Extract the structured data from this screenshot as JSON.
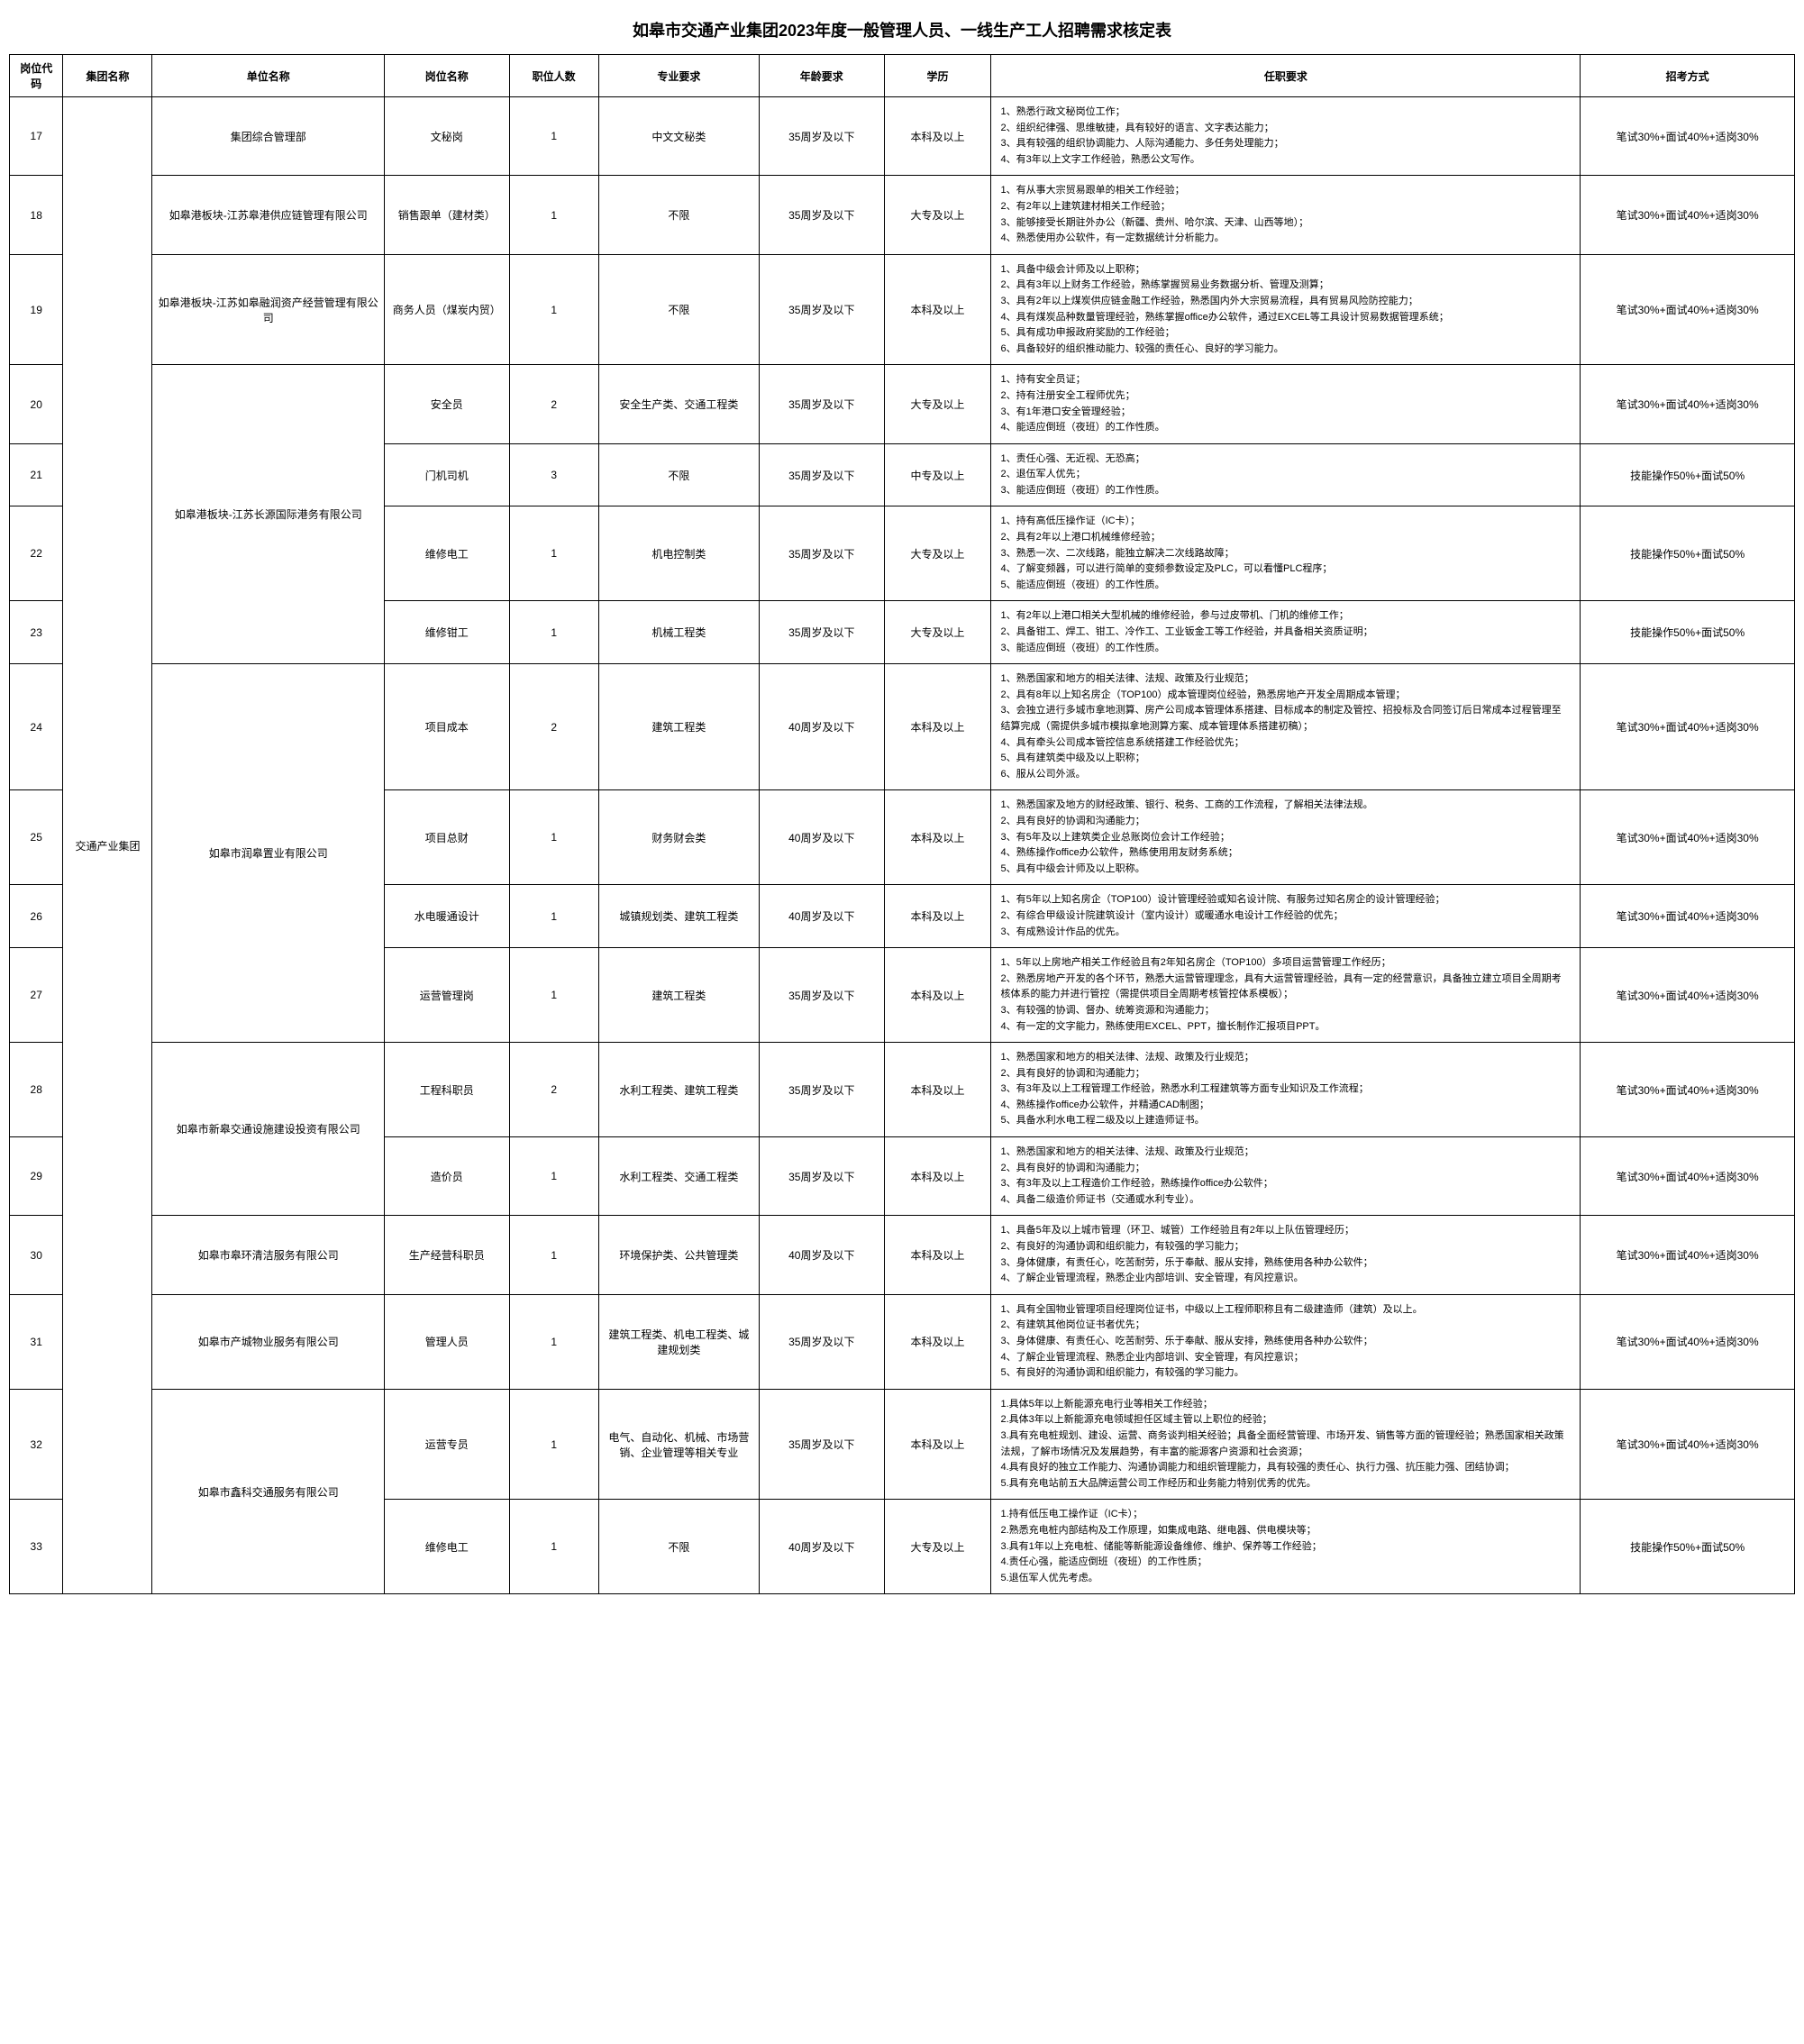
{
  "title": "如皋市交通产业集团2023年度一般管理人员、一线生产工人招聘需求核定表",
  "headers": {
    "id": "岗位代码",
    "group": "集团名称",
    "unit": "单位名称",
    "position": "岗位名称",
    "count": "职位人数",
    "major": "专业要求",
    "age": "年龄要求",
    "edu": "学历",
    "req": "任职要求",
    "method": "招考方式"
  },
  "group_name": "交通产业集团",
  "method_a": "笔试30%+面试40%+适岗30%",
  "method_b": "技能操作50%+面试50%",
  "rows": [
    {
      "id": "17",
      "unit": "集团综合管理部",
      "position": "文秘岗",
      "count": "1",
      "major": "中文文秘类",
      "age": "35周岁及以下",
      "edu": "本科及以上",
      "req": [
        "1、熟悉行政文秘岗位工作；",
        "2、组织纪律强、思维敏捷，具有较好的语言、文字表达能力；",
        "3、具有较强的组织协调能力、人际沟通能力、多任务处理能力；",
        "4、有3年以上文字工作经验，熟悉公文写作。"
      ],
      "method": "a"
    },
    {
      "id": "18",
      "unit": "如皋港板块-江苏皋港供应链管理有限公司",
      "position": "销售跟单（建材类）",
      "count": "1",
      "major": "不限",
      "age": "35周岁及以下",
      "edu": "大专及以上",
      "req": [
        "1、有从事大宗贸易跟单的相关工作经验；",
        "2、有2年以上建筑建材相关工作经验；",
        "3、能够接受长期驻外办公（新疆、贵州、哈尔滨、天津、山西等地）；",
        "4、熟悉使用办公软件，有一定数据统计分析能力。"
      ],
      "method": "a"
    },
    {
      "id": "19",
      "unit": "如皋港板块-江苏如皋融润资产经营管理有限公司",
      "position": "商务人员（煤炭内贸）",
      "count": "1",
      "major": "不限",
      "age": "35周岁及以下",
      "edu": "本科及以上",
      "req": [
        "1、具备中级会计师及以上职称；",
        "2、具有3年以上财务工作经验，熟练掌握贸易业务数据分析、管理及测算；",
        "3、具有2年以上煤炭供应链金融工作经验，熟悉国内外大宗贸易流程，具有贸易风险防控能力；",
        "4、具有煤炭品种数量管理经验，熟练掌握office办公软件，通过EXCEL等工具设计贸易数据管理系统；",
        "5、具有成功申报政府奖励的工作经验；",
        "6、具备较好的组织推动能力、较强的责任心、良好的学习能力。"
      ],
      "method": "a"
    },
    {
      "id": "20",
      "unit": "如皋港板块-江苏长源国际港务有限公司",
      "unit_rowspan": 4,
      "position": "安全员",
      "count": "2",
      "major": "安全生产类、交通工程类",
      "age": "35周岁及以下",
      "edu": "大专及以上",
      "req": [
        "1、持有安全员证；",
        "2、持有注册安全工程师优先；",
        "3、有1年港口安全管理经验；",
        "4、能适应倒班（夜班）的工作性质。"
      ],
      "method": "a"
    },
    {
      "id": "21",
      "position": "门机司机",
      "count": "3",
      "major": "不限",
      "age": "35周岁及以下",
      "edu": "中专及以上",
      "req": [
        "1、责任心强、无近视、无恐高；",
        "2、退伍军人优先；",
        "3、能适应倒班（夜班）的工作性质。"
      ],
      "method": "b"
    },
    {
      "id": "22",
      "position": "维修电工",
      "count": "1",
      "major": "机电控制类",
      "age": "35周岁及以下",
      "edu": "大专及以上",
      "req": [
        "1、持有高低压操作证（IC卡）；",
        "2、具有2年以上港口机械维修经验；",
        "3、熟悉一次、二次线路，能独立解决二次线路故障；",
        "4、了解变频器，可以进行简单的变频参数设定及PLC，可以看懂PLC程序；",
        "5、能适应倒班（夜班）的工作性质。"
      ],
      "method": "b"
    },
    {
      "id": "23",
      "position": "维修钳工",
      "count": "1",
      "major": "机械工程类",
      "age": "35周岁及以下",
      "edu": "大专及以上",
      "req": [
        "1、有2年以上港口相关大型机械的维修经验，参与过皮带机、门机的维修工作；",
        "2、具备钳工、焊工、钳工、冷作工、工业钣金工等工作经验，并具备相关资质证明；",
        "3、能适应倒班（夜班）的工作性质。"
      ],
      "method": "b"
    },
    {
      "id": "24",
      "unit": "如皋市润皋置业有限公司",
      "unit_rowspan": 4,
      "position": "项目成本",
      "count": "2",
      "major": "建筑工程类",
      "age": "40周岁及以下",
      "edu": "本科及以上",
      "req": [
        "1、熟悉国家和地方的相关法律、法规、政策及行业规范；",
        "2、具有8年以上知名房企（TOP100）成本管理岗位经验，熟悉房地产开发全周期成本管理；",
        "3、会独立进行多城市拿地测算、房产公司成本管理体系搭建、目标成本的制定及管控、招投标及合同签订后日常成本过程管理至结算完成（需提供多城市模拟拿地测算方案、成本管理体系搭建初稿）；",
        "4、具有牵头公司成本管控信息系统搭建工作经验优先；",
        "5、具有建筑类中级及以上职称；",
        "6、服从公司外派。"
      ],
      "method": "a"
    },
    {
      "id": "25",
      "position": "项目总财",
      "count": "1",
      "major": "财务财会类",
      "age": "40周岁及以下",
      "edu": "本科及以上",
      "req": [
        "1、熟悉国家及地方的财经政策、银行、税务、工商的工作流程，了解相关法律法规。",
        "2、具有良好的协调和沟通能力；",
        "3、有5年及以上建筑类企业总账岗位会计工作经验；",
        "4、熟练操作office办公软件，熟练使用用友财务系统；",
        "5、具有中级会计师及以上职称。"
      ],
      "method": "a"
    },
    {
      "id": "26",
      "position": "水电暖通设计",
      "count": "1",
      "major": "城镇规划类、建筑工程类",
      "age": "40周岁及以下",
      "edu": "本科及以上",
      "req": [
        "1、有5年以上知名房企（TOP100）设计管理经验或知名设计院、有服务过知名房企的设计管理经验；",
        "2、有综合甲级设计院建筑设计（室内设计）或暖通水电设计工作经验的优先；",
        "3、有成熟设计作品的优先。"
      ],
      "method": "a"
    },
    {
      "id": "27",
      "position": "运营管理岗",
      "count": "1",
      "major": "建筑工程类",
      "age": "35周岁及以下",
      "edu": "本科及以上",
      "req": [
        "1、5年以上房地产相关工作经验且有2年知名房企（TOP100）多项目运营管理工作经历；",
        "2、熟悉房地产开发的各个环节，熟悉大运营管理理念，具有大运营管理经验，具有一定的经营意识，具备独立建立项目全周期考核体系的能力并进行管控（需提供项目全周期考核管控体系模板）；",
        "3、有较强的协调、督办、统筹资源和沟通能力；",
        "4、有一定的文字能力，熟练使用EXCEL、PPT，擅长制作汇报项目PPT。"
      ],
      "method": "a"
    },
    {
      "id": "28",
      "unit": "如皋市新皋交通设施建设投资有限公司",
      "unit_rowspan": 2,
      "position": "工程科职员",
      "count": "2",
      "major": "水利工程类、建筑工程类",
      "age": "35周岁及以下",
      "edu": "本科及以上",
      "req": [
        "1、熟悉国家和地方的相关法律、法规、政策及行业规范；",
        "2、具有良好的协调和沟通能力；",
        "3、有3年及以上工程管理工作经验，熟悉水利工程建筑等方面专业知识及工作流程；",
        "4、熟练操作office办公软件，并精通CAD制图；",
        "5、具备水利水电工程二级及以上建造师证书。"
      ],
      "method": "a"
    },
    {
      "id": "29",
      "position": "造价员",
      "count": "1",
      "major": "水利工程类、交通工程类",
      "age": "35周岁及以下",
      "edu": "本科及以上",
      "req": [
        "1、熟悉国家和地方的相关法律、法规、政策及行业规范；",
        "2、具有良好的协调和沟通能力；",
        "3、有3年及以上工程造价工作经验，熟练操作office办公软件；",
        "4、具备二级造价师证书（交通或水利专业）。"
      ],
      "method": "a"
    },
    {
      "id": "30",
      "unit": "如皋市皋环清洁服务有限公司",
      "position": "生产经营科职员",
      "count": "1",
      "major": "环境保护类、公共管理类",
      "age": "40周岁及以下",
      "edu": "本科及以上",
      "req": [
        "1、具备5年及以上城市管理（环卫、城管）工作经验且有2年以上队伍管理经历；",
        "2、有良好的沟通协调和组织能力，有较强的学习能力；",
        "3、身体健康，有责任心，吃苦耐劳，乐于奉献、服从安排，熟练使用各种办公软件；",
        "4、了解企业管理流程，熟悉企业内部培训、安全管理，有风控意识。"
      ],
      "method": "a"
    },
    {
      "id": "31",
      "unit": "如皋市产城物业服务有限公司",
      "position": "管理人员",
      "count": "1",
      "major": "建筑工程类、机电工程类、城建规划类",
      "age": "35周岁及以下",
      "edu": "本科及以上",
      "req": [
        "1、具有全国物业管理项目经理岗位证书，中级以上工程师职称且有二级建造师（建筑）及以上。",
        "2、有建筑其他岗位证书者优先；",
        "3、身体健康、有责任心、吃苦耐劳、乐于奉献、服从安排，熟练使用各种办公软件；",
        "4、了解企业管理流程、熟悉企业内部培训、安全管理，有风控意识；",
        "5、有良好的沟通协调和组织能力，有较强的学习能力。"
      ],
      "method": "a"
    },
    {
      "id": "32",
      "unit": "如皋市鑫科交通服务有限公司",
      "unit_rowspan": 2,
      "position": "运营专员",
      "count": "1",
      "major": "电气、自动化、机械、市场营销、企业管理等相关专业",
      "age": "35周岁及以下",
      "edu": "本科及以上",
      "req": [
        "1.具体5年以上新能源充电行业等相关工作经验；",
        "2.具体3年以上新能源充电领域担任区域主管以上职位的经验；",
        "3.具有充电桩规划、建设、运营、商务谈判相关经验；具备全面经营管理、市场开发、销售等方面的管理经验；熟悉国家相关政策法规，了解市场情况及发展趋势，有丰富的能源客户资源和社会资源；",
        "4.具有良好的独立工作能力、沟通协调能力和组织管理能力，具有较强的责任心、执行力强、抗压能力强、团结协调；",
        "5.具有充电站前五大品牌运营公司工作经历和业务能力特别优秀的优先。"
      ],
      "method": "a"
    },
    {
      "id": "33",
      "position": "维修电工",
      "count": "1",
      "major": "不限",
      "age": "40周岁及以下",
      "edu": "大专及以上",
      "req": [
        "1.持有低压电工操作证（IC卡）；",
        "2.熟悉充电桩内部结构及工作原理，如集成电路、继电器、供电模块等；",
        "3.具有1年以上充电桩、储能等新能源设备维修、维护、保养等工作经验；",
        "4.责任心强，能适应倒班（夜班）的工作性质；",
        "5.退伍军人优先考虑。"
      ],
      "method": "b"
    }
  ]
}
